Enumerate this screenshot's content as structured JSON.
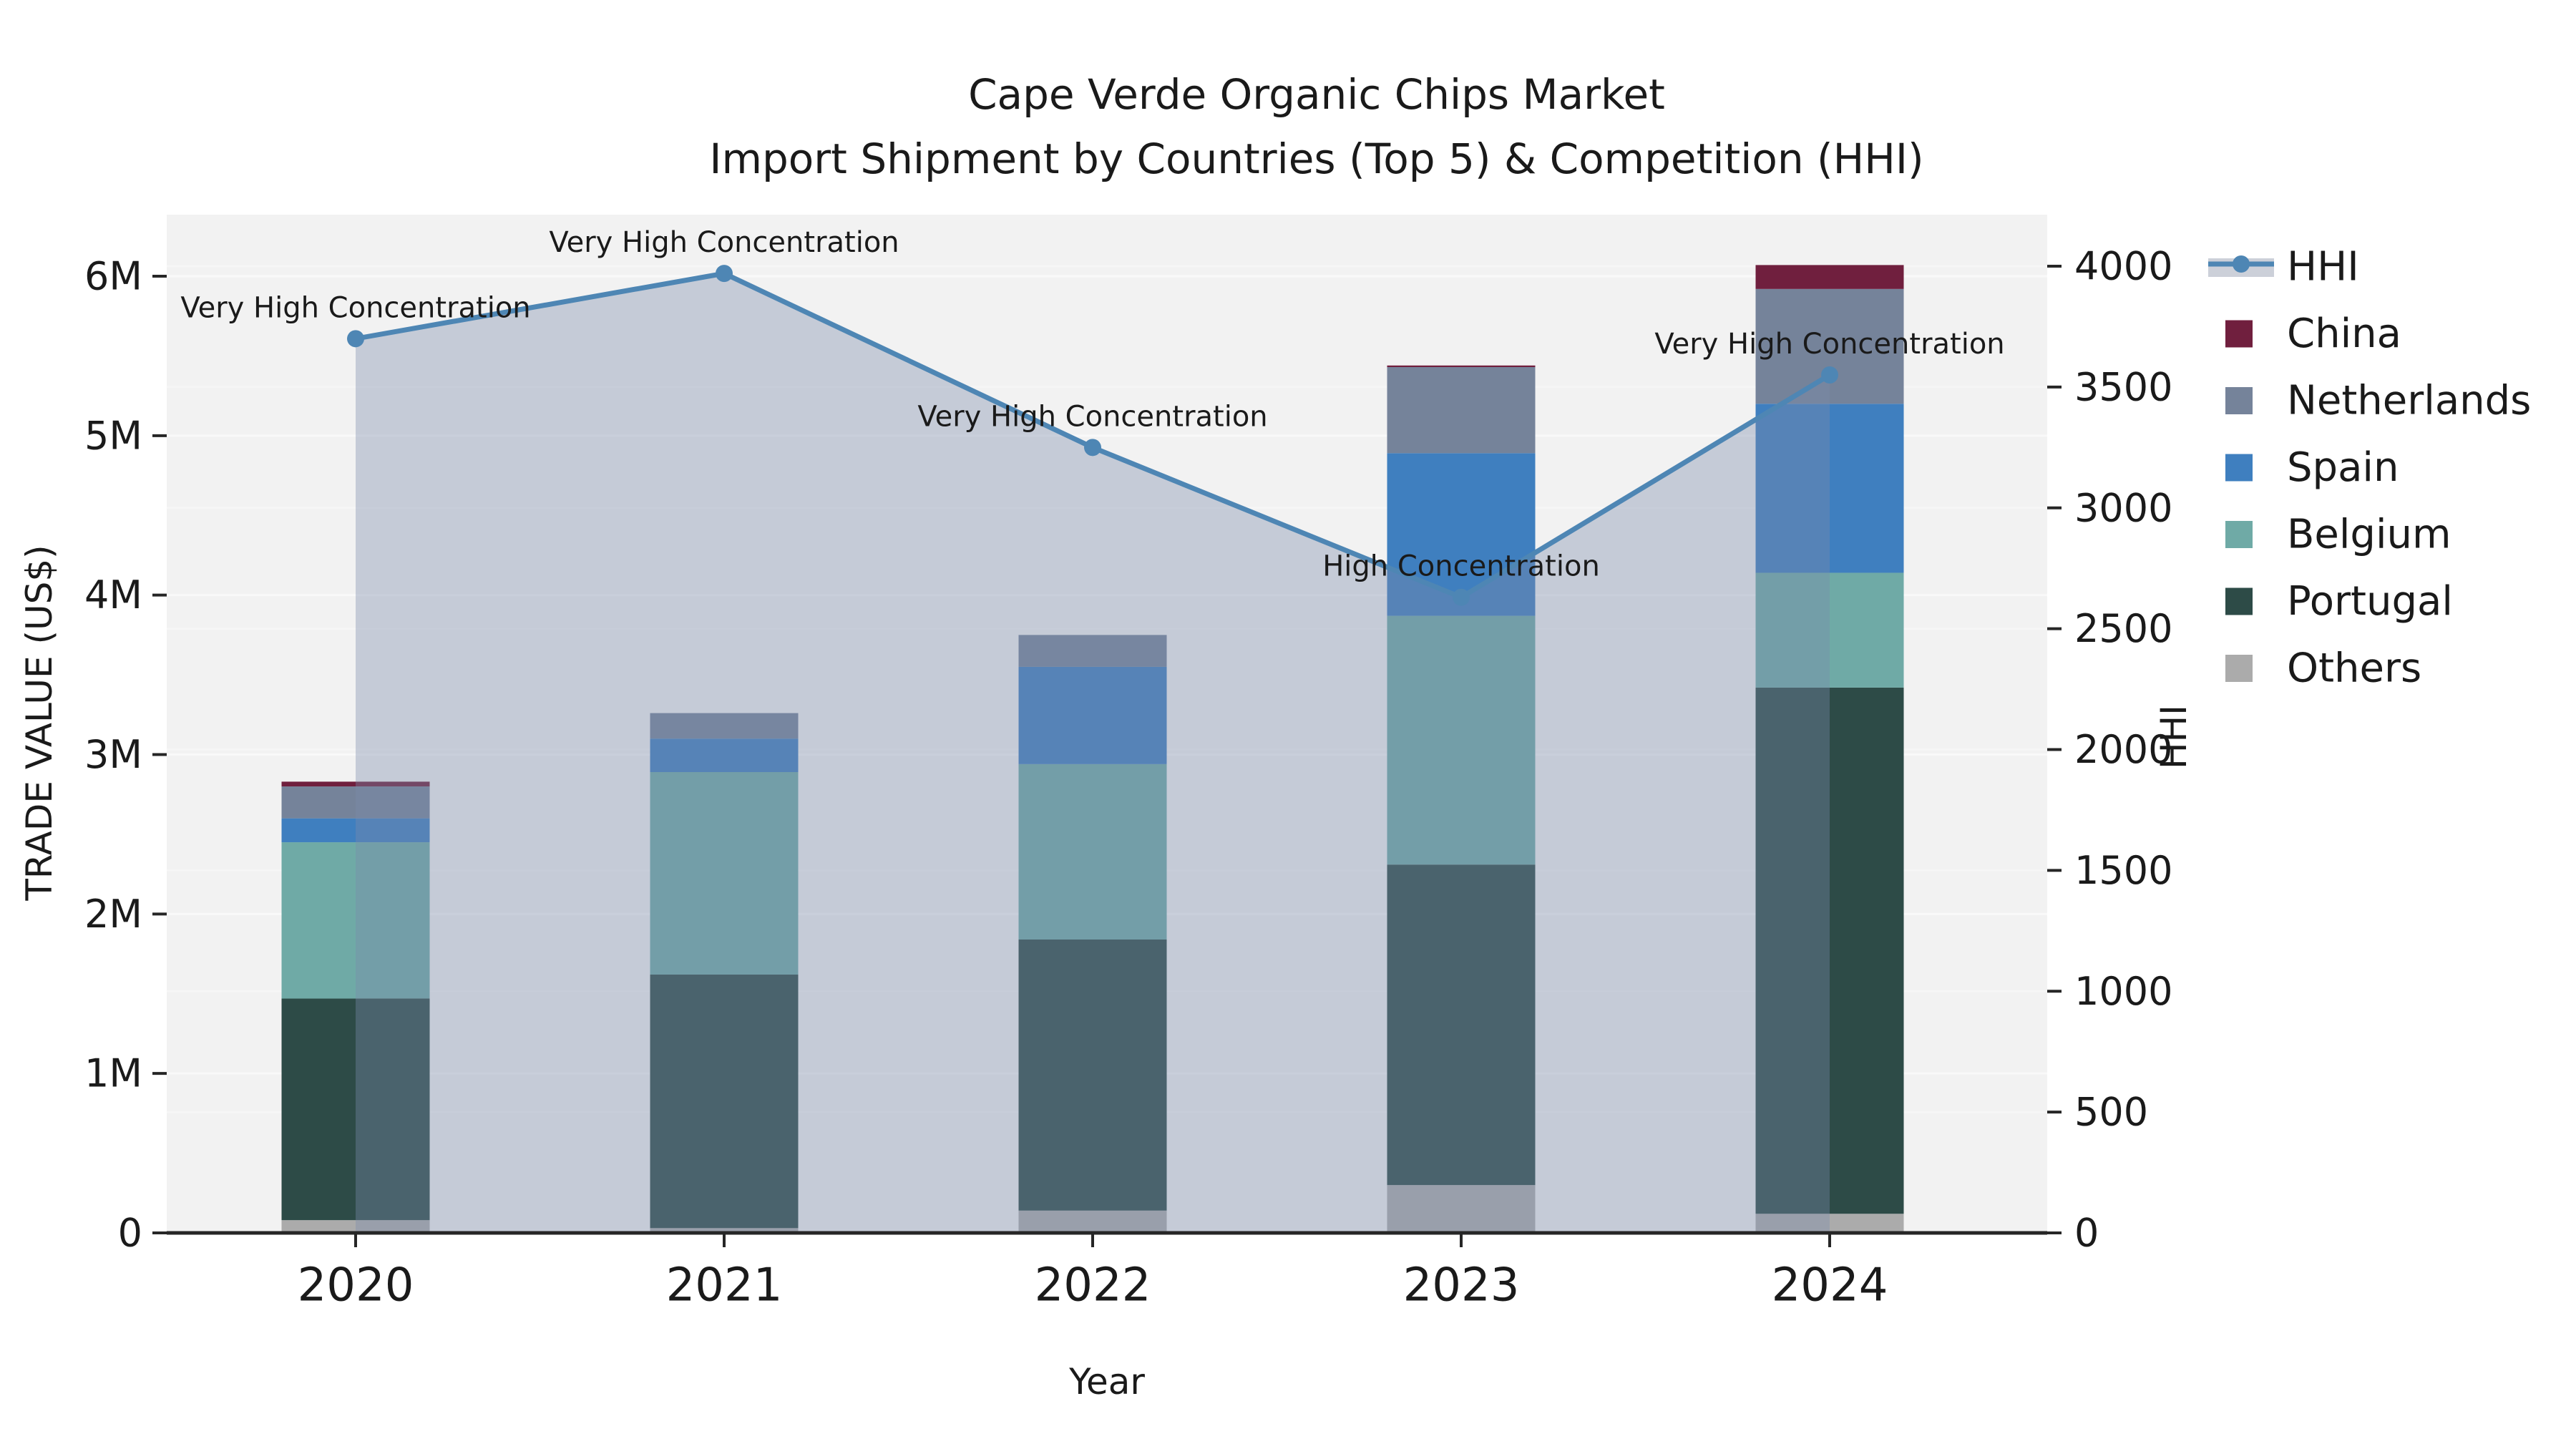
{
  "chart_data": {
    "type": "combo-stacked-bar-line",
    "title_line1": "Cape Verde Organic Chips Market",
    "title_line2": "Import Shipment by Countries (Top 5) & Competition (HHI)",
    "xlabel": "Year",
    "ylabel_left": "TRADE VALUE (US$)",
    "ylabel_right": "HHI",
    "categories": [
      "2020",
      "2021",
      "2022",
      "2023",
      "2024"
    ],
    "y_left_axis": {
      "unit": "M US$",
      "ticks": [
        0,
        1,
        2,
        3,
        4,
        5,
        6
      ],
      "tick_labels": [
        "0",
        "1M",
        "2M",
        "3M",
        "4M",
        "5M",
        "6M"
      ],
      "ylim": [
        0,
        6.39
      ]
    },
    "y_right_axis": {
      "unit": "HHI index",
      "ticks": [
        0,
        500,
        1000,
        1500,
        2000,
        2500,
        3000,
        3500,
        4000
      ],
      "tick_labels": [
        "0",
        "500",
        "1000",
        "1500",
        "2000",
        "2500",
        "3000",
        "3500",
        "4000"
      ],
      "ylim": [
        0,
        4213
      ]
    },
    "stacked_series": [
      {
        "name": "Others",
        "color": "#ababab",
        "values": [
          0.08,
          0.03,
          0.14,
          0.3,
          0.12
        ]
      },
      {
        "name": "Portugal",
        "color": "#2d4b47",
        "values": [
          1.39,
          1.59,
          1.7,
          2.01,
          3.3
        ]
      },
      {
        "name": "Belgium",
        "color": "#6faaa6",
        "values": [
          0.98,
          1.27,
          1.1,
          1.56,
          0.72
        ]
      },
      {
        "name": "Spain",
        "color": "#3f7fbf",
        "values": [
          0.15,
          0.21,
          0.61,
          1.02,
          1.06
        ]
      },
      {
        "name": "Netherlands",
        "color": "#75839a",
        "values": [
          0.2,
          0.16,
          0.2,
          0.54,
          0.72
        ]
      },
      {
        "name": "China",
        "color": "#701f3e",
        "values": [
          0.03,
          0.0,
          0.0,
          0.01,
          0.15
        ]
      }
    ],
    "bar_totals_M": [
      2.83,
      3.26,
      3.75,
      5.44,
      6.07
    ],
    "hhi": {
      "name": "HHI",
      "line_color": "#4e86b4",
      "area_color": "rgba(124,140,172,0.38)",
      "legend_band_color": "#ccd0d9",
      "values": [
        3700,
        3970,
        3250,
        2630,
        3550
      ],
      "annotations": [
        "Very High Concentration",
        "Very High Concentration",
        "Very High Concentration",
        "High Concentration",
        "Very High Concentration"
      ]
    },
    "legend_items": [
      "HHI",
      "China",
      "Netherlands",
      "Spain",
      "Belgium",
      "Portugal",
      "Others"
    ],
    "colors": {
      "plot_background": "#f2f2f2",
      "figure_background": "#ffffff",
      "axis_line": "#262626",
      "text": "#1a1a1a",
      "gridline": "#fafafa"
    }
  }
}
